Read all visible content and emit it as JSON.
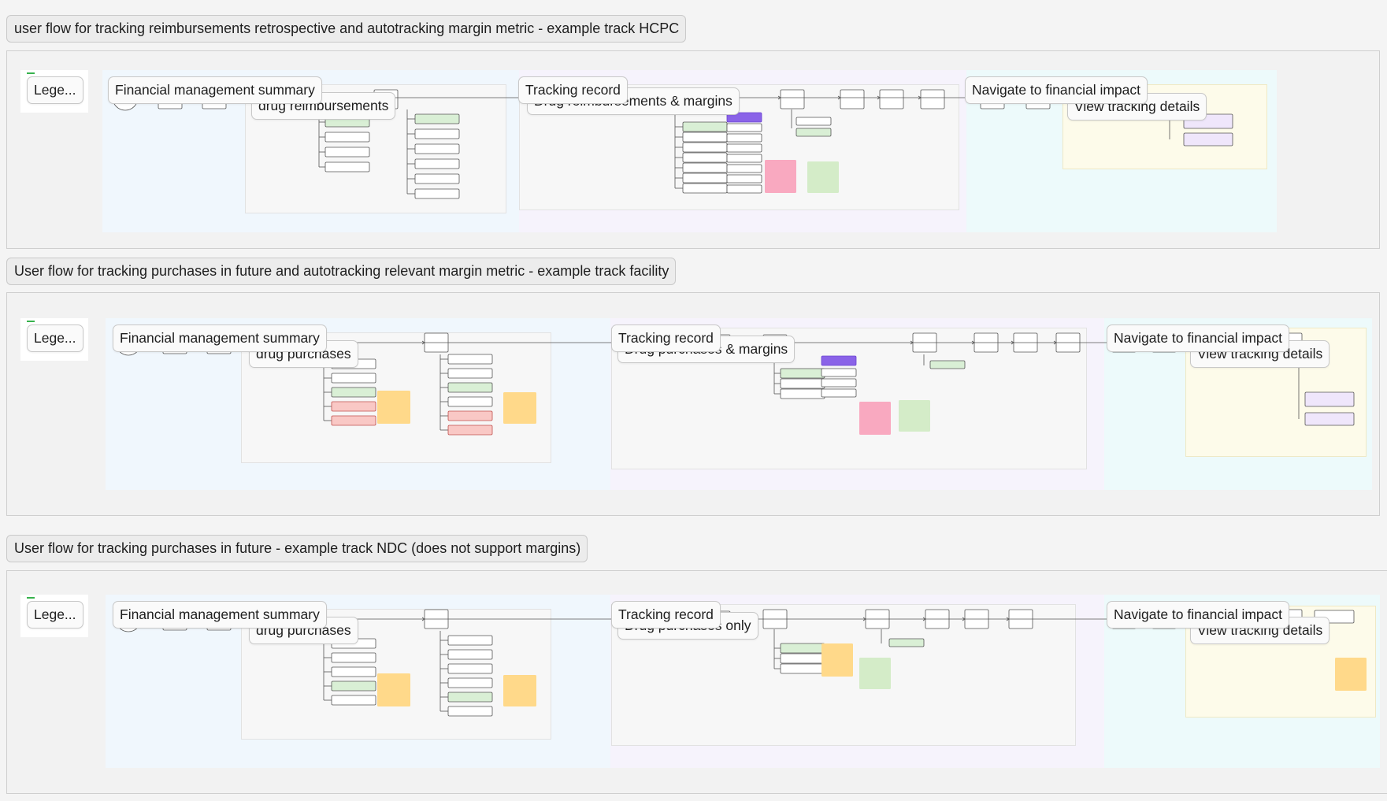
{
  "flows": [
    {
      "title": "user flow for tracking reimbursements retrospective and autotracking margin metric - example track HCPC",
      "legend_label": "Lege...",
      "sections": {
        "summary": "Financial management summary",
        "sub_summary": "drug reimbursements",
        "record": "Tracking record",
        "sub_record": "Drug reimbursements & margins",
        "impact": "Navigate to financial impact",
        "sub_impact": "View tracking details"
      }
    },
    {
      "title": "User flow for tracking purchases in future and autotracking relevant margin metric - example track facility",
      "legend_label": "Lege...",
      "sections": {
        "summary": "Financial management summary",
        "sub_summary": "drug purchases",
        "record": "Tracking record",
        "sub_record": "Drug purchases & margins",
        "impact": "Navigate to financial impact",
        "sub_impact": "View tracking details"
      }
    },
    {
      "title": "User flow for tracking purchases in future - example track NDC (does not support margins)",
      "legend_label": "Lege...",
      "sections": {
        "summary": "Financial management summary",
        "sub_summary": "drug purchases",
        "record": "Tracking record",
        "sub_record": "Drug purchases only",
        "impact": "Navigate to financial impact",
        "sub_impact": "View tracking details"
      }
    }
  ],
  "colors": {
    "lane_summary": "#f0f7fd",
    "lane_record": "#f6f3fc",
    "lane_impact": "#edfafb",
    "node_green": "#d9efd5",
    "node_red": "#f9c8c5",
    "node_purple": "#8a63e8",
    "sticky_yellow": "#ffd98a",
    "sticky_pink": "#f9a9c0",
    "sticky_green": "#d4ecc8"
  }
}
